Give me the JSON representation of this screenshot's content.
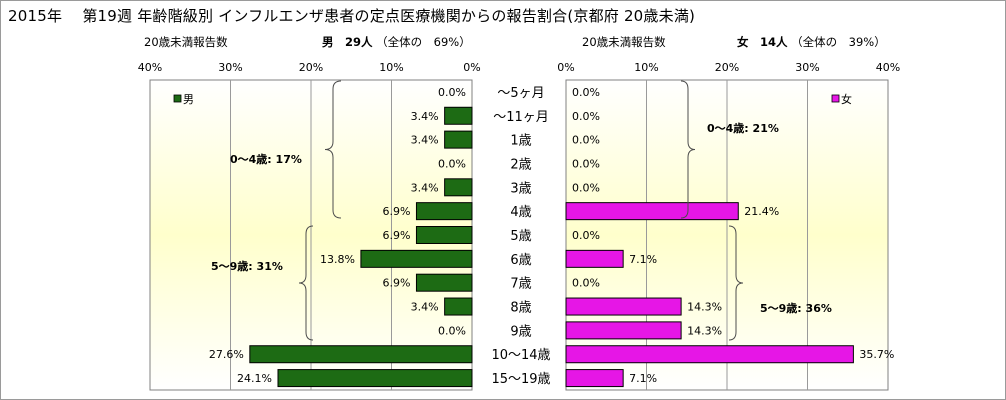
{
  "title": "2015年　 第19週 年齢階級別 インフルエンザ患者の定点医療機関からの報告割合(京都府 20歳未満)",
  "male_header": {
    "left_label": "20歳未満報告数",
    "sex_count": "男　29人",
    "share": "（全体の　69%）"
  },
  "female_header": {
    "left_label": "20歳未満報告数",
    "sex_count": "女　14人",
    "share": "（全体の　39%）"
  },
  "colors": {
    "male": "#1d6b14",
    "female": "#e616e6",
    "plot_top": "#ffffff",
    "plot_mid": "#ffffcc"
  },
  "chart_data": [
    {
      "type": "bar",
      "orientation": "horizontal-left",
      "legend": "男",
      "legend_position": "top-left",
      "categories": [
        "～5ヶ月",
        "～11ヶ月",
        "1歳",
        "2歳",
        "3歳",
        "4歳",
        "5歳",
        "6歳",
        "7歳",
        "8歳",
        "9歳",
        "10～14歳",
        "15～19歳"
      ],
      "series": [
        {
          "name": "男",
          "values": [
            0.0,
            3.4,
            3.4,
            0.0,
            3.4,
            6.9,
            6.9,
            13.8,
            6.9,
            3.4,
            0.0,
            27.6,
            24.1
          ],
          "labels": [
            "0.0%",
            "3.4%",
            "3.4%",
            "0.0%",
            "3.4%",
            "6.9%",
            "6.9%",
            "13.8%",
            "6.9%",
            "3.4%",
            "0.0%",
            "27.6%",
            "24.1%"
          ]
        }
      ],
      "xlim": [
        0,
        40
      ],
      "x_ticks": [
        "40%",
        "30%",
        "20%",
        "10%",
        "0%"
      ],
      "grid": true,
      "annotations": [
        "0～4歳: 17%",
        "5～9歳: 31%"
      ]
    },
    {
      "type": "bar",
      "orientation": "horizontal-right",
      "legend": "女",
      "legend_position": "top-right",
      "categories": [
        "～5ヶ月",
        "～11ヶ月",
        "1歳",
        "2歳",
        "3歳",
        "4歳",
        "5歳",
        "6歳",
        "7歳",
        "8歳",
        "9歳",
        "10～14歳",
        "15～19歳"
      ],
      "series": [
        {
          "name": "女",
          "values": [
            0.0,
            0.0,
            0.0,
            0.0,
            0.0,
            21.4,
            0.0,
            7.1,
            0.0,
            14.3,
            14.3,
            35.7,
            7.1
          ],
          "labels": [
            "0.0%",
            "0.0%",
            "0.0%",
            "0.0%",
            "0.0%",
            "21.4%",
            "0.0%",
            "7.1%",
            "0.0%",
            "14.3%",
            "14.3%",
            "35.7%",
            "7.1%"
          ]
        }
      ],
      "xlim": [
        0,
        40
      ],
      "x_ticks": [
        "0%",
        "10%",
        "20%",
        "30%",
        "40%"
      ],
      "grid": true,
      "annotations": [
        "0～4歳: 21%",
        "5～9歳: 36%"
      ]
    }
  ]
}
